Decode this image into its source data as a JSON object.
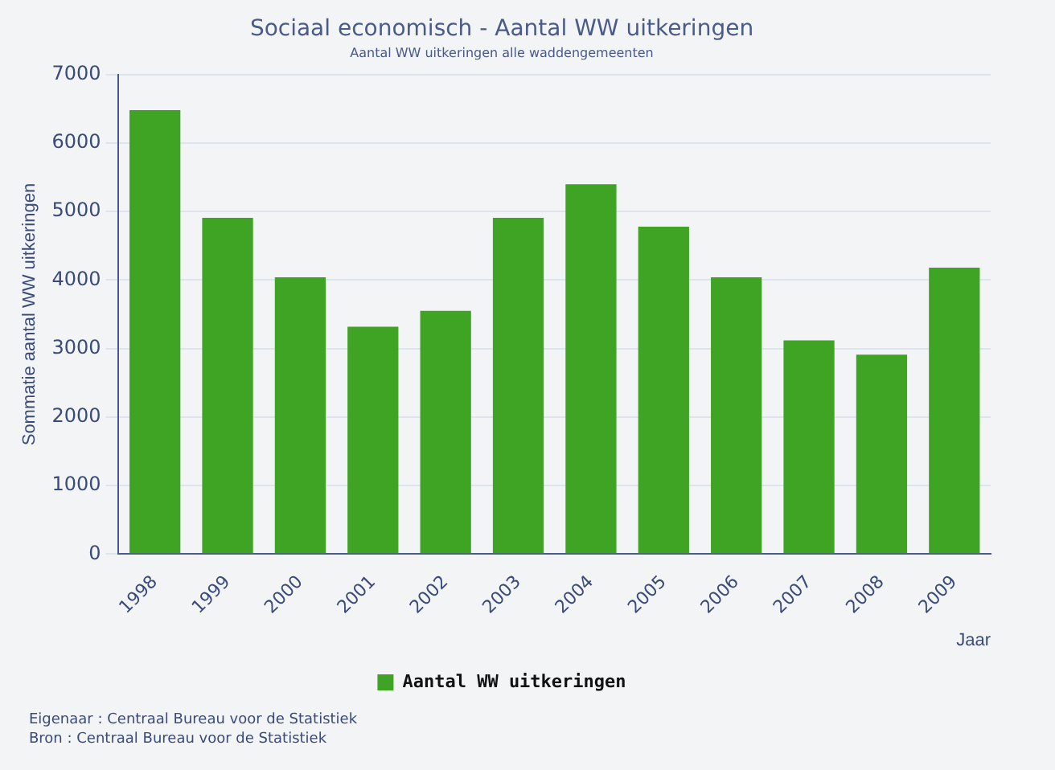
{
  "chart_data": {
    "type": "bar",
    "title": "Sociaal economisch - Aantal WW uitkeringen",
    "subtitle": "Aantal WW uitkeringen alle waddengemeenten",
    "xlabel": "Jaar",
    "ylabel": "Sommatie aantal WW uitkeringen",
    "categories": [
      "1998",
      "1999",
      "2000",
      "2001",
      "2002",
      "2003",
      "2004",
      "2005",
      "2006",
      "2007",
      "2008",
      "2009"
    ],
    "series": [
      {
        "name": "Aantal WW uitkeringen",
        "color": "#3fa323",
        "values": [
          6480,
          4910,
          4040,
          3320,
          3550,
          4910,
          5400,
          4780,
          4040,
          3120,
          2910,
          4180
        ]
      }
    ],
    "ylim": [
      0,
      7000
    ],
    "yticks": [
      0,
      1000,
      2000,
      3000,
      4000,
      5000,
      6000,
      7000
    ],
    "grid": "y",
    "legend": "bottom",
    "annotations": [
      "Eigenaar : Centraal Bureau voor de Statistiek",
      "Bron : Centraal Bureau voor de Statistiek"
    ]
  }
}
